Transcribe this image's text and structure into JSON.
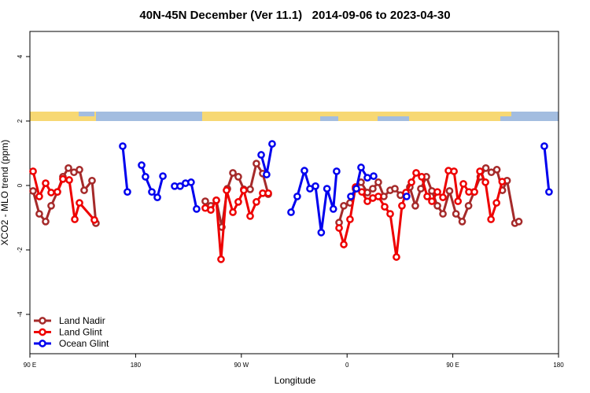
{
  "chart_data": {
    "type": "line",
    "title": "40N-45N December (Ver 11.1)   2014-09-06 to 2023-04-30",
    "x_label": "Longitude",
    "y_label": "XCO2 - MLO trend (ppm)",
    "xlim": [
      90,
      540
    ],
    "xticks": [
      {
        "value": 90,
        "label": "90 E"
      },
      {
        "value": 180,
        "label": "180"
      },
      {
        "value": 270,
        "label": "90 W"
      },
      {
        "value": 360,
        "label": "0"
      },
      {
        "value": 450,
        "label": "90 E"
      },
      {
        "value": 540,
        "label": "180"
      }
    ],
    "ylim": [
      -5.22,
      4.78
    ],
    "yticks": [
      -4,
      -2,
      0,
      2,
      4
    ],
    "legend": "bottom-left",
    "series": [
      {
        "name": "Land Nadir",
        "color": "#a52a2a",
        "x": [
          92.7,
          98.0,
          103.4,
          108.1,
          113.4,
          118.1,
          122.8,
          127.5,
          132.2,
          136.2,
          142.9,
          146.2,
          null,
          239.3,
          244.0,
          248.7,
          253.4,
          258.1,
          262.8,
          267.4,
          272.1,
          277.5,
          282.8,
          288.2,
          292.9,
          null,
          353.2,
          357.2,
          362.5,
          367.2,
          371.9,
          377.3,
          381.9,
          386.6,
          391.3,
          396.7,
          400.7,
          405.4,
          410.1,
          413.4,
          418.1,
          422.8,
          427.5,
          432.2,
          436.9,
          441.6,
          447.2,
          452.7,
          458.0,
          463.4,
          468.1,
          473.4,
          478.1,
          482.8,
          487.5,
          492.2,
          496.2,
          502.9,
          506.2
        ],
        "values": [
          -0.17,
          -0.88,
          -1.12,
          -0.63,
          -0.2,
          0.27,
          0.54,
          0.41,
          0.49,
          -0.15,
          0.15,
          -1.17,
          null,
          -0.49,
          -0.63,
          -0.46,
          -1.29,
          -0.1,
          0.39,
          0.27,
          -0.12,
          -0.12,
          0.68,
          0.37,
          -0.27,
          null,
          -1.15,
          -0.63,
          -0.54,
          -0.1,
          0.1,
          -0.22,
          -0.1,
          0.1,
          -0.34,
          -0.15,
          -0.1,
          -0.3,
          -0.32,
          -0.05,
          -0.63,
          -0.1,
          0.27,
          -0.17,
          -0.63,
          -0.88,
          -0.17,
          -0.88,
          -1.12,
          -0.63,
          -0.2,
          0.27,
          0.54,
          0.41,
          0.49,
          -0.15,
          0.15,
          -1.17,
          -1.12
        ]
      },
      {
        "name": "Land Glint",
        "color": "#ee0000",
        "x": [
          92.7,
          98.0,
          103.4,
          108.1,
          113.4,
          118.1,
          123.5,
          128.2,
          132.2,
          144.9,
          null,
          239.3,
          244.0,
          248.7,
          252.7,
          257.4,
          262.8,
          267.4,
          272.1,
          277.5,
          282.8,
          288.2,
          292.9,
          null,
          353.2,
          357.2,
          362.5,
          367.2,
          372.6,
          377.3,
          381.9,
          386.6,
          392.0,
          396.7,
          402.0,
          406.7,
          410.1,
          414.8,
          418.8,
          423.5,
          428.2,
          432.2,
          436.9,
          441.6,
          446.3,
          451.0,
          454.4,
          459.0,
          463.7,
          468.4,
          473.1,
          477.8,
          482.5,
          487.2,
          492.0
        ],
        "values": [
          0.44,
          -0.34,
          0.07,
          -0.22,
          -0.2,
          0.2,
          0.17,
          -1.05,
          -0.54,
          -1.07,
          null,
          -0.7,
          -0.76,
          -0.46,
          -2.29,
          -0.15,
          -0.83,
          -0.51,
          -0.15,
          -0.95,
          -0.51,
          -0.24,
          -0.24,
          null,
          -1.32,
          -1.83,
          -1.05,
          -0.05,
          -0.2,
          -0.49,
          -0.39,
          -0.34,
          -0.66,
          -0.88,
          -2.22,
          -0.63,
          -0.22,
          0.1,
          0.39,
          0.27,
          -0.34,
          -0.49,
          -0.2,
          -0.37,
          0.46,
          0.44,
          -0.49,
          0.05,
          -0.2,
          -0.2,
          0.44,
          0.1,
          -1.05,
          -0.54,
          0.12
        ]
      },
      {
        "name": "Ocean Glint",
        "color": "#0000ee",
        "x": [
          169.0,
          173.0,
          null,
          185.1,
          188.4,
          193.8,
          198.5,
          203.2,
          null,
          213.2,
          217.9,
          222.5,
          227.2,
          231.9,
          null,
          286.9,
          291.5,
          296.2,
          null,
          312.3,
          317.6,
          323.7,
          328.4,
          333.1,
          338.0,
          342.9,
          348.3,
          351.1,
          null,
          363.2,
          367.9,
          371.9,
          377.3,
          382.6,
          null,
          410.7,
          null,
          527.9,
          531.9
        ],
        "values": [
          1.22,
          -0.2,
          null,
          0.63,
          0.27,
          -0.2,
          -0.37,
          0.29,
          null,
          -0.02,
          -0.02,
          0.07,
          0.1,
          -0.73,
          null,
          0.95,
          0.34,
          1.29,
          null,
          -0.83,
          -0.34,
          0.46,
          -0.1,
          -0.02,
          -1.46,
          -0.1,
          -0.73,
          0.44,
          null,
          -0.34,
          -0.1,
          0.56,
          0.24,
          0.29,
          null,
          -0.34,
          null,
          1.22,
          -0.2
        ]
      }
    ]
  }
}
